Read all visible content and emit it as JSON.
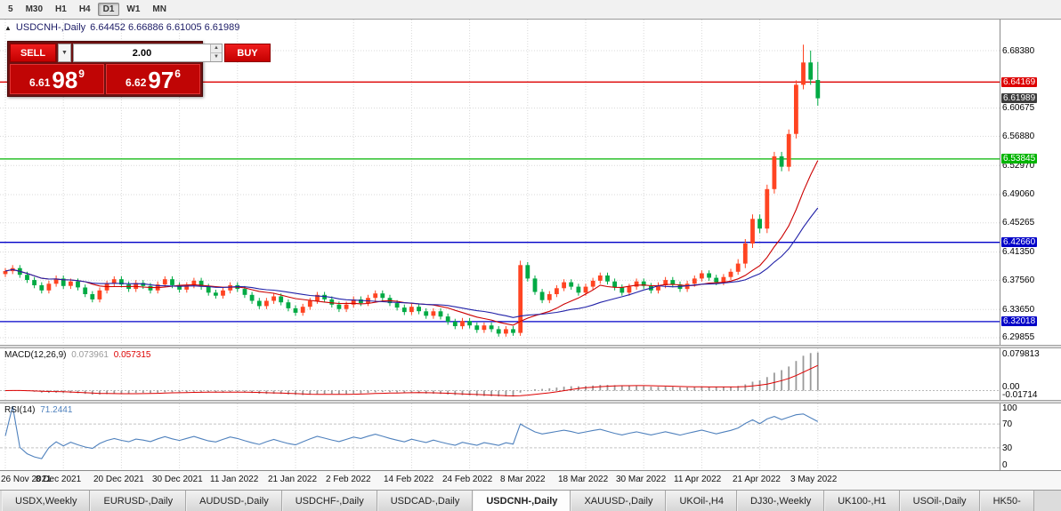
{
  "toolbar": {
    "timeframes": [
      "5",
      "M30",
      "H1",
      "H4",
      "D1",
      "W1",
      "MN"
    ],
    "active": "D1"
  },
  "header": {
    "symbol": "USDCNH-,Daily",
    "ohlc": "6.64452 6.66886 6.61005 6.61989"
  },
  "icons": {
    "one_click_toggle": "▲",
    "dropdown": "▼",
    "spin_up": "▲",
    "spin_down": "▼"
  },
  "trade_panel": {
    "sell_label": "SELL",
    "buy_label": "BUY",
    "volume": "2.00",
    "sell_price_small": "6.61",
    "sell_price_big": "98",
    "sell_price_sup": "9",
    "buy_price_small": "6.62",
    "buy_price_big": "97",
    "buy_price_sup": "6"
  },
  "price_axis": {
    "labels": [
      {
        "text": "6.68380",
        "type": "grid"
      },
      {
        "text": "6.64169",
        "type": "line-red"
      },
      {
        "text": "6.61989",
        "type": "current"
      },
      {
        "text": "6.60675",
        "type": "grid"
      },
      {
        "text": "6.56880",
        "type": "grid"
      },
      {
        "text": "6.53845",
        "type": "line-green"
      },
      {
        "text": "6.52970",
        "type": "grid"
      },
      {
        "text": "6.49060",
        "type": "grid"
      },
      {
        "text": "6.45265",
        "type": "grid"
      },
      {
        "text": "6.42660",
        "type": "line-blue"
      },
      {
        "text": "6.41350",
        "type": "grid"
      },
      {
        "text": "6.37560",
        "type": "grid"
      },
      {
        "text": "6.33650",
        "type": "grid"
      },
      {
        "text": "6.32018",
        "type": "line-blue"
      },
      {
        "text": "6.29855",
        "type": "grid"
      }
    ]
  },
  "colors": {
    "bull": "#ff4422",
    "bear": "#00aa44",
    "line_red": "#dd0000",
    "line_green": "#00b400",
    "line_blue": "#0000c8",
    "macd_hist": "#9a9a9a",
    "macd_signal": "#dd0000",
    "rsi_line": "#4f81bd",
    "accent_red": "#c00505"
  },
  "chart_data": {
    "type": "candlestick",
    "symbol": "USDCNH",
    "timeframe": "Daily",
    "title": "USDCNH-,Daily",
    "current_bar": {
      "open": 6.64452,
      "high": 6.66886,
      "low": 6.61005,
      "close": 6.61989
    },
    "y_range_main": [
      6.289,
      6.7256
    ],
    "label_every": 8,
    "x_labels": [
      "26 Nov 2021",
      "8 Dec 2021",
      "20 Dec 2021",
      "30 Dec 2021",
      "11 Jan 2022",
      "21 Jan 2022",
      "2 Feb 2022",
      "14 Feb 2022",
      "24 Feb 2022",
      "8 Mar 2022",
      "18 Mar 2022",
      "30 Mar 2022",
      "11 Apr 2022",
      "21 Apr 2022",
      "3 May 2022"
    ],
    "candles": [
      [
        6.384,
        6.392,
        6.38,
        6.388
      ],
      [
        6.388,
        6.396,
        6.384,
        6.392
      ],
      [
        6.392,
        6.396,
        6.379,
        6.383
      ],
      [
        6.383,
        6.387,
        6.372,
        6.376
      ],
      [
        6.376,
        6.38,
        6.365,
        6.369
      ],
      [
        6.369,
        6.373,
        6.358,
        6.362
      ],
      [
        6.362,
        6.375,
        6.358,
        6.371
      ],
      [
        6.371,
        6.382,
        6.367,
        6.378
      ],
      [
        6.378,
        6.382,
        6.364,
        6.368
      ],
      [
        6.368,
        6.378,
        6.364,
        6.374
      ],
      [
        6.374,
        6.378,
        6.362,
        6.366
      ],
      [
        6.366,
        6.37,
        6.353,
        6.357
      ],
      [
        6.357,
        6.361,
        6.346,
        6.35
      ],
      [
        6.35,
        6.366,
        6.346,
        6.362
      ],
      [
        6.362,
        6.375,
        6.358,
        6.371
      ],
      [
        6.371,
        6.381,
        6.367,
        6.377
      ],
      [
        6.377,
        6.381,
        6.366,
        6.37
      ],
      [
        6.37,
        6.374,
        6.36,
        6.364
      ],
      [
        6.364,
        6.376,
        6.36,
        6.372
      ],
      [
        6.372,
        6.376,
        6.364,
        6.368
      ],
      [
        6.368,
        6.372,
        6.358,
        6.362
      ],
      [
        6.362,
        6.374,
        6.358,
        6.37
      ],
      [
        6.37,
        6.381,
        6.366,
        6.377
      ],
      [
        6.377,
        6.381,
        6.365,
        6.369
      ],
      [
        6.369,
        6.373,
        6.359,
        6.363
      ],
      [
        6.363,
        6.373,
        6.359,
        6.369
      ],
      [
        6.369,
        6.379,
        6.365,
        6.375
      ],
      [
        6.375,
        6.379,
        6.363,
        6.367
      ],
      [
        6.367,
        6.371,
        6.355,
        6.359
      ],
      [
        6.359,
        6.363,
        6.351,
        6.355
      ],
      [
        6.355,
        6.366,
        6.351,
        6.362
      ],
      [
        6.362,
        6.373,
        6.358,
        6.369
      ],
      [
        6.369,
        6.373,
        6.36,
        6.364
      ],
      [
        6.364,
        6.368,
        6.352,
        6.356
      ],
      [
        6.356,
        6.36,
        6.344,
        6.348
      ],
      [
        6.348,
        6.352,
        6.337,
        6.341
      ],
      [
        6.341,
        6.352,
        6.337,
        6.348
      ],
      [
        6.348,
        6.358,
        6.344,
        6.354
      ],
      [
        6.354,
        6.358,
        6.342,
        6.346
      ],
      [
        6.346,
        6.35,
        6.334,
        6.338
      ],
      [
        6.338,
        6.342,
        6.328,
        6.332
      ],
      [
        6.332,
        6.344,
        6.328,
        6.34
      ],
      [
        6.34,
        6.352,
        6.336,
        6.348
      ],
      [
        6.348,
        6.36,
        6.344,
        6.356
      ],
      [
        6.356,
        6.36,
        6.346,
        6.35
      ],
      [
        6.35,
        6.354,
        6.339,
        6.343
      ],
      [
        6.343,
        6.347,
        6.333,
        6.337
      ],
      [
        6.337,
        6.347,
        6.333,
        6.343
      ],
      [
        6.343,
        6.354,
        6.339,
        6.35
      ],
      [
        6.35,
        6.354,
        6.341,
        6.345
      ],
      [
        6.345,
        6.356,
        6.341,
        6.352
      ],
      [
        6.352,
        6.362,
        6.348,
        6.358
      ],
      [
        6.358,
        6.362,
        6.348,
        6.352
      ],
      [
        6.352,
        6.356,
        6.341,
        6.345
      ],
      [
        6.345,
        6.349,
        6.335,
        6.339
      ],
      [
        6.339,
        6.343,
        6.329,
        6.333
      ],
      [
        6.333,
        6.344,
        6.329,
        6.34
      ],
      [
        6.34,
        6.344,
        6.33,
        6.334
      ],
      [
        6.334,
        6.338,
        6.324,
        6.328
      ],
      [
        6.328,
        6.338,
        6.324,
        6.334
      ],
      [
        6.334,
        6.338,
        6.323,
        6.327
      ],
      [
        6.327,
        6.331,
        6.316,
        6.32
      ],
      [
        6.32,
        6.324,
        6.31,
        6.314
      ],
      [
        6.314,
        6.325,
        6.31,
        6.321
      ],
      [
        6.321,
        6.325,
        6.311,
        6.315
      ],
      [
        6.315,
        6.319,
        6.305,
        6.309
      ],
      [
        6.309,
        6.319,
        6.305,
        6.315
      ],
      [
        6.315,
        6.319,
        6.306,
        6.31
      ],
      [
        6.31,
        6.314,
        6.3,
        6.304
      ],
      [
        6.304,
        6.314,
        6.3,
        6.31
      ],
      [
        6.31,
        6.314,
        6.301,
        6.305
      ],
      [
        6.305,
        6.402,
        6.301,
        6.396
      ],
      [
        6.396,
        6.4,
        6.374,
        6.378
      ],
      [
        6.378,
        6.382,
        6.356,
        6.36
      ],
      [
        6.36,
        6.364,
        6.345,
        6.349
      ],
      [
        6.349,
        6.361,
        6.345,
        6.357
      ],
      [
        6.357,
        6.369,
        6.353,
        6.365
      ],
      [
        6.365,
        6.377,
        6.361,
        6.373
      ],
      [
        6.373,
        6.377,
        6.363,
        6.367
      ],
      [
        6.367,
        6.371,
        6.355,
        6.359
      ],
      [
        6.359,
        6.371,
        6.355,
        6.367
      ],
      [
        6.367,
        6.379,
        6.363,
        6.375
      ],
      [
        6.375,
        6.386,
        6.371,
        6.382
      ],
      [
        6.382,
        6.386,
        6.37,
        6.374
      ],
      [
        6.374,
        6.378,
        6.362,
        6.366
      ],
      [
        6.366,
        6.37,
        6.355,
        6.359
      ],
      [
        6.359,
        6.371,
        6.355,
        6.367
      ],
      [
        6.367,
        6.378,
        6.363,
        6.374
      ],
      [
        6.374,
        6.378,
        6.364,
        6.368
      ],
      [
        6.368,
        6.372,
        6.358,
        6.362
      ],
      [
        6.362,
        6.373,
        6.358,
        6.369
      ],
      [
        6.369,
        6.38,
        6.365,
        6.376
      ],
      [
        6.376,
        6.38,
        6.366,
        6.37
      ],
      [
        6.37,
        6.374,
        6.36,
        6.364
      ],
      [
        6.364,
        6.375,
        6.36,
        6.371
      ],
      [
        6.371,
        6.382,
        6.367,
        6.378
      ],
      [
        6.378,
        6.389,
        6.374,
        6.385
      ],
      [
        6.385,
        6.389,
        6.375,
        6.379
      ],
      [
        6.379,
        6.383,
        6.369,
        6.373
      ],
      [
        6.373,
        6.384,
        6.369,
        6.38
      ],
      [
        6.38,
        6.391,
        6.376,
        6.387
      ],
      [
        6.387,
        6.404,
        6.383,
        6.398
      ],
      [
        6.398,
        6.431,
        6.392,
        6.425
      ],
      [
        6.425,
        6.464,
        6.419,
        6.458
      ],
      [
        6.458,
        6.464,
        6.439,
        6.445
      ],
      [
        6.445,
        6.504,
        6.439,
        6.498
      ],
      [
        6.498,
        6.548,
        6.492,
        6.542
      ],
      [
        6.542,
        6.548,
        6.522,
        6.528
      ],
      [
        6.528,
        6.578,
        6.522,
        6.572
      ],
      [
        6.572,
        6.644,
        6.566,
        6.638
      ],
      [
        6.638,
        6.692,
        6.632,
        6.668
      ],
      [
        6.668,
        6.684,
        6.638,
        6.645
      ],
      [
        6.64452,
        6.66886,
        6.61005,
        6.61989
      ]
    ],
    "levels": [
      {
        "price": 6.64169,
        "color": "#dd0000"
      },
      {
        "price": 6.53845,
        "color": "#00b400"
      },
      {
        "price": 6.4266,
        "color": "#0000c8"
      },
      {
        "price": 6.32018,
        "color": "#0000c8"
      }
    ],
    "moving_averages": [
      {
        "name": "fast-ma",
        "period": 12,
        "color": "#cc0000"
      },
      {
        "name": "slow-ma",
        "period": 20,
        "color": "#2121a8"
      }
    ],
    "macd": {
      "label": "MACD(12,26,9)",
      "value_main": "0.073961",
      "value_signal": "0.057315",
      "params": [
        12,
        26,
        9
      ],
      "axis": [
        "0.079813",
        "0.00",
        "-0.01714"
      ]
    },
    "rsi": {
      "label": "RSI(14)",
      "value": "71.2441",
      "period": 14,
      "levels": [
        70,
        30
      ],
      "axis": [
        "100",
        "70",
        "30",
        "0"
      ]
    }
  },
  "bottom_tabs": {
    "items": [
      "USDX,Weekly",
      "EURUSD-,Daily",
      "AUDUSD-,Daily",
      "USDCHF-,Daily",
      "USDCAD-,Daily",
      "USDCNH-,Daily",
      "XAUUSD-,Daily",
      "UKOil-,H4",
      "DJ30-,Weekly",
      "UK100-,H1",
      "USOil-,Daily",
      "HK50-"
    ],
    "active_index": 5
  }
}
